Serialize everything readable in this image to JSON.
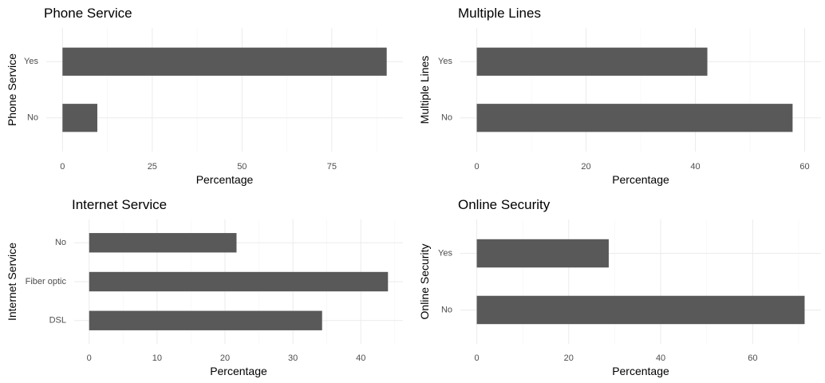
{
  "chart_data": [
    {
      "type": "bar",
      "orientation": "horizontal",
      "title": "Phone Service",
      "xlabel": "Percentage",
      "ylabel": "Phone Service",
      "categories": [
        "No",
        "Yes"
      ],
      "values": [
        9.7,
        90.3
      ],
      "xlim": [
        0,
        90.3
      ],
      "xticks": [
        0,
        25,
        50,
        75
      ],
      "bar_color": "#595959",
      "grid": true
    },
    {
      "type": "bar",
      "orientation": "horizontal",
      "title": "Multiple Lines",
      "xlabel": "Percentage",
      "ylabel": "Multiple Lines",
      "categories": [
        "No",
        "Yes"
      ],
      "values": [
        57.8,
        42.2
      ],
      "xlim": [
        0,
        60
      ],
      "xticks": [
        0,
        20,
        40,
        60
      ],
      "bar_color": "#595959",
      "grid": true
    },
    {
      "type": "bar",
      "orientation": "horizontal",
      "title": "Internet Service",
      "xlabel": "Percentage",
      "ylabel": "Internet Service",
      "categories": [
        "DSL",
        "Fiber optic",
        "No"
      ],
      "values": [
        34.3,
        44.0,
        21.7
      ],
      "xlim": [
        0,
        44.0
      ],
      "xticks": [
        0,
        10,
        20,
        30,
        40
      ],
      "bar_color": "#595959",
      "grid": true
    },
    {
      "type": "bar",
      "orientation": "horizontal",
      "title": "Online Security",
      "xlabel": "Percentage",
      "ylabel": "Online Security",
      "categories": [
        "No",
        "Yes"
      ],
      "values": [
        71.3,
        28.7
      ],
      "xlim": [
        0,
        71.3
      ],
      "xticks": [
        0,
        20,
        40,
        60
      ],
      "bar_color": "#595959",
      "grid": true
    }
  ]
}
